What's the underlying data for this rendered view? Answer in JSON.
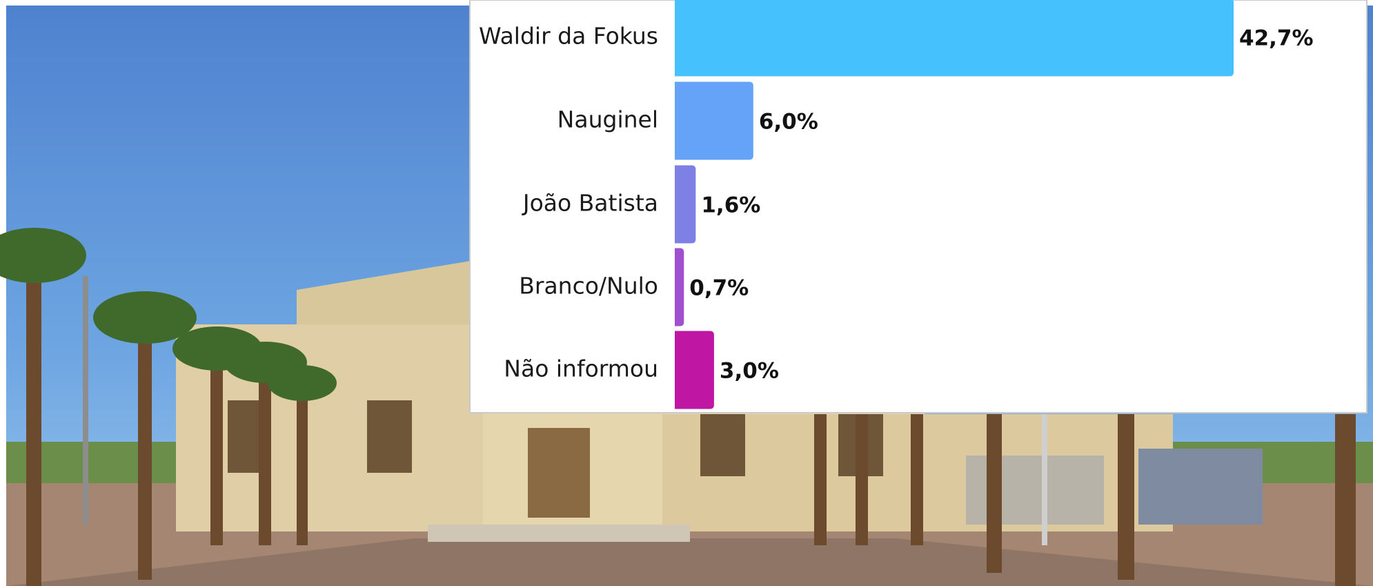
{
  "chart_data": {
    "type": "bar",
    "orientation": "horizontal",
    "categories": [
      "Waldir da Fokus",
      "Nauginel",
      "João Batista",
      "Branco/Nulo",
      "Não informou"
    ],
    "values": [
      42.7,
      6.0,
      1.6,
      0.7,
      3.0
    ],
    "value_labels": [
      "42,7%",
      "6,0%",
      "1,6%",
      "0,7%",
      "3,0%"
    ],
    "colors": [
      "#45c1fd",
      "#64a3f7",
      "#7f80e6",
      "#a050cf",
      "#c016a4"
    ]
  }
}
